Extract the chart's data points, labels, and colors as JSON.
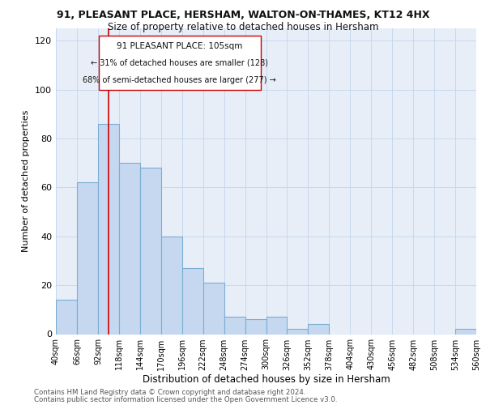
{
  "title_line1": "91, PLEASANT PLACE, HERSHAM, WALTON-ON-THAMES, KT12 4HX",
  "title_line2": "Size of property relative to detached houses in Hersham",
  "xlabel": "Distribution of detached houses by size in Hersham",
  "ylabel": "Number of detached properties",
  "footer_line1": "Contains HM Land Registry data © Crown copyright and database right 2024.",
  "footer_line2": "Contains public sector information licensed under the Open Government Licence v3.0.",
  "bar_edges": [
    40,
    66,
    92,
    118,
    144,
    170,
    196,
    222,
    248,
    274,
    300,
    326,
    352,
    378,
    404,
    430,
    456,
    482,
    508,
    534,
    560
  ],
  "bar_heights": [
    14,
    62,
    86,
    70,
    68,
    40,
    27,
    21,
    7,
    6,
    7,
    2,
    4,
    0,
    0,
    0,
    0,
    0,
    0,
    2
  ],
  "bar_color": "#c5d8f0",
  "bar_edge_color": "#7badd4",
  "property_line_x": 105,
  "annotation_text_line1": "91 PLEASANT PLACE: 105sqm",
  "annotation_text_line2": "← 31% of detached houses are smaller (128)",
  "annotation_text_line3": "68% of semi-detached houses are larger (277) →",
  "ylim": [
    0,
    125
  ],
  "yticks": [
    0,
    20,
    40,
    60,
    80,
    100,
    120
  ],
  "grid_color": "#c8d8ee",
  "facecolor": "#e8eef8"
}
